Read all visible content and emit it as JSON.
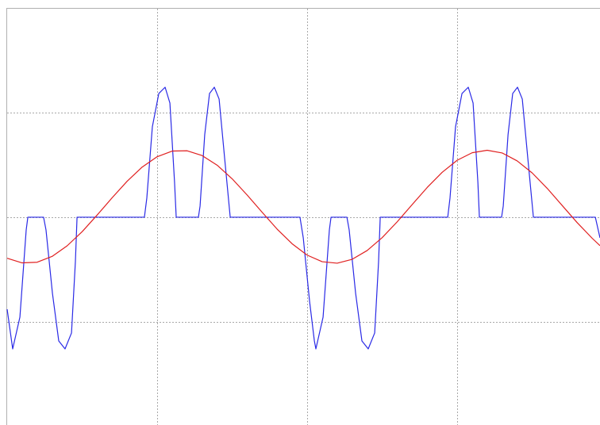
{
  "chart_data": {
    "type": "line",
    "xlim": [
      0,
      3.952
    ],
    "ylim": [
      -1.985,
      1.992
    ],
    "xticks": [
      1,
      2,
      3
    ],
    "yticks": [
      -1,
      0,
      1
    ],
    "grid": true,
    "series": [
      {
        "color": "#2a2ae6",
        "x": [
          0,
          0.037,
          0.085,
          0.127,
          0.138,
          0.243,
          0.259,
          0.302,
          0.344,
          0.386,
          0.429,
          0.455,
          0.466,
          0.915,
          0.931,
          0.968,
          1.011,
          1.053,
          1.085,
          1.116,
          1.127,
          1.275,
          1.286,
          1.317,
          1.349,
          1.381,
          1.413,
          1.45,
          1.487,
          1.937,
          1.952,
          1.974,
          2.016,
          2.048,
          2.058,
          2.106,
          2.148,
          2.159,
          2.265,
          2.28,
          2.323,
          2.365,
          2.407,
          2.45,
          2.476,
          2.487,
          2.937,
          2.952,
          2.989,
          3.032,
          3.074,
          3.106,
          3.138,
          3.148,
          3.296,
          3.307,
          3.339,
          3.37,
          3.402,
          3.434,
          3.471,
          3.508,
          3.921,
          3.952
        ],
        "values": [
          -0.879,
          -1.258,
          -0.955,
          -0.121,
          0,
          0,
          -0.121,
          -0.727,
          -1.182,
          -1.258,
          -1.106,
          -0.424,
          0,
          0,
          0.182,
          0.864,
          1.182,
          1.242,
          1.091,
          0.333,
          0,
          0,
          0.106,
          0.788,
          1.182,
          1.242,
          1.129,
          0.561,
          0,
          0,
          0,
          -0.197,
          -0.803,
          -1.182,
          -1.258,
          -0.955,
          -0.121,
          0,
          0,
          -0.121,
          -0.727,
          -1.182,
          -1.258,
          -1.106,
          -0.424,
          0,
          0,
          0.182,
          0.864,
          1.182,
          1.242,
          1.091,
          0.333,
          0,
          0,
          0.106,
          0.788,
          1.182,
          1.242,
          1.129,
          0.561,
          0,
          0,
          -0.197
        ]
      },
      {
        "color": "#e02020",
        "x": [
          0,
          0.1,
          0.2,
          0.3,
          0.4,
          0.5,
          0.6,
          0.7,
          0.8,
          0.9,
          1.0,
          1.1,
          1.2,
          1.3,
          1.4,
          1.5,
          1.6,
          1.7,
          1.8,
          1.9,
          2.0,
          2.1,
          2.2,
          2.3,
          2.4,
          2.5,
          2.6,
          2.7,
          2.8,
          2.9,
          3.0,
          3.1,
          3.2,
          3.3,
          3.4,
          3.5,
          3.6,
          3.7,
          3.8,
          3.9,
          3.952
        ],
        "values": [
          -0.392,
          -0.436,
          -0.43,
          -0.374,
          -0.273,
          -0.138,
          0.021,
          0.186,
          0.344,
          0.479,
          0.578,
          0.632,
          0.635,
          0.589,
          0.497,
          0.367,
          0.212,
          0.047,
          -0.114,
          -0.254,
          -0.362,
          -0.425,
          -0.439,
          -0.402,
          -0.318,
          -0.195,
          -0.044,
          0.121,
          0.284,
          0.429,
          0.544,
          0.616,
          0.64,
          0.614,
          0.538,
          0.423,
          0.276,
          0.112,
          -0.052,
          -0.201,
          -0.272
        ]
      }
    ]
  }
}
